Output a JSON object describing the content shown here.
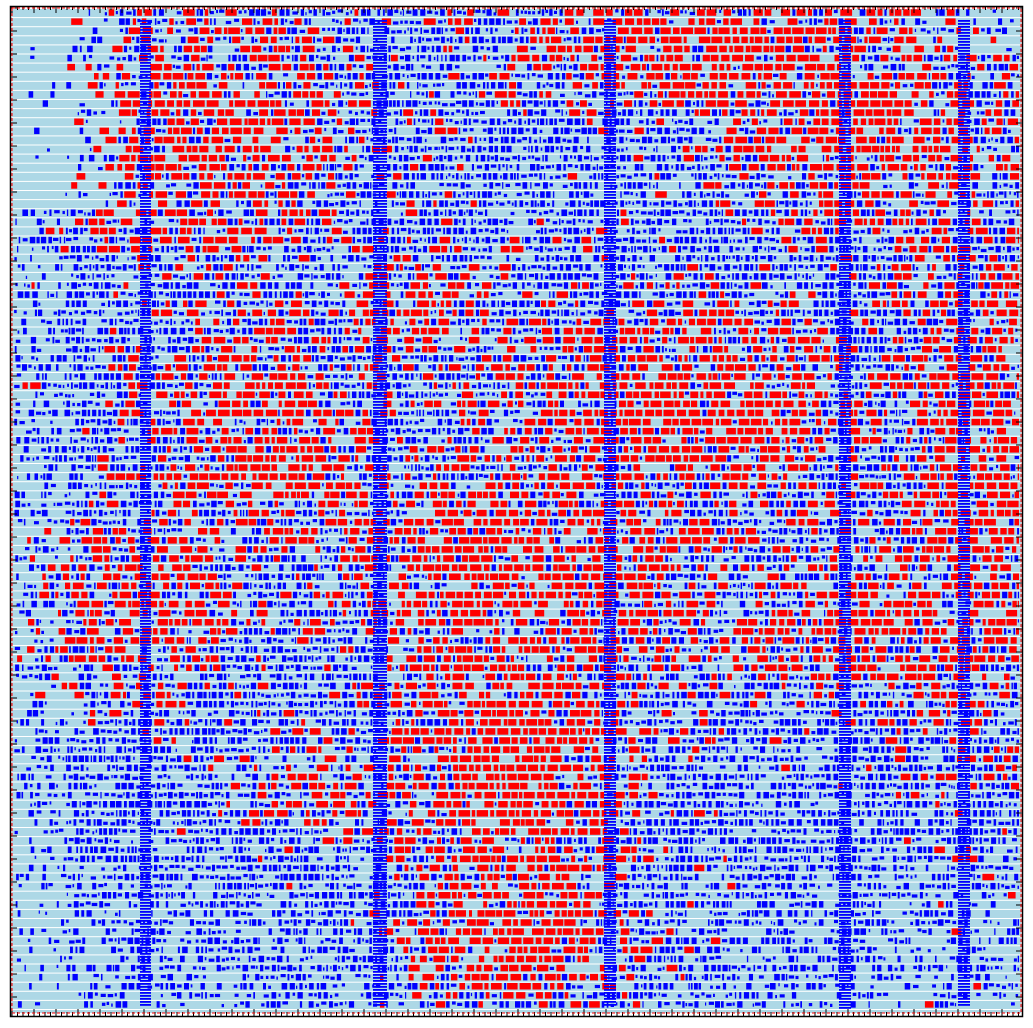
{
  "view": {
    "title": "",
    "description": ""
  },
  "colors": {
    "page_background": "#ffffff",
    "die_background": "#add8e6",
    "row_stripe": "#ffffff",
    "cell_blue": "#0000ff",
    "cell_red": "#ff0000",
    "die_border_dashed": "#ff0000",
    "frame": "#000000",
    "tick": "#000000"
  },
  "legend": []
}
